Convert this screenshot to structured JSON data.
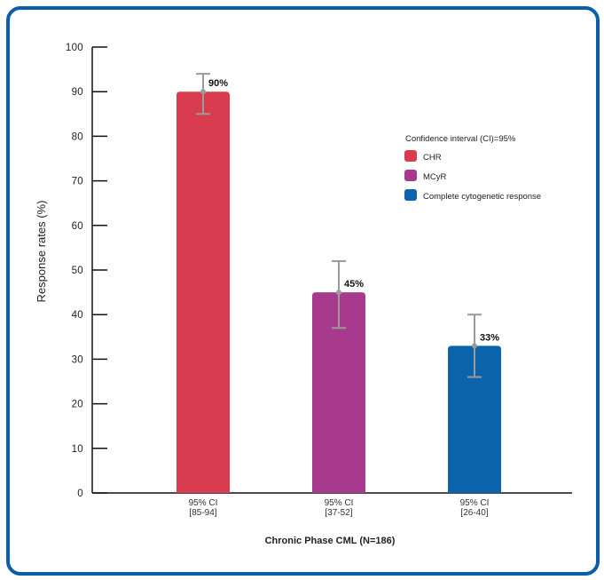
{
  "chart_data": {
    "type": "bar",
    "categories": [
      "95% CI\n[85-94]",
      "95% CI\n[37-52]",
      "95% CI\n[26-40]"
    ],
    "values": [
      90,
      45,
      33
    ],
    "data_labels": [
      "90%",
      "45%",
      "33%"
    ],
    "error_bars": [
      [
        85,
        94
      ],
      [
        37,
        52
      ],
      [
        26,
        40
      ]
    ],
    "colors": [
      "#d93c4e",
      "#a83a8e",
      "#0b63ac"
    ],
    "title": "",
    "xlabel": "Chronic Phase CML (N=186)",
    "ylabel": "Response rates (%)",
    "ylim": [
      0,
      100
    ],
    "yticks": [
      0,
      10,
      20,
      30,
      40,
      50,
      60,
      70,
      80,
      90,
      100
    ],
    "grid": false,
    "legend": {
      "title": "Confidence interval (CI)=95%",
      "placement": "right",
      "entries": [
        {
          "label": "CHR",
          "color": "#d93c4e"
        },
        {
          "label": "MCyR",
          "color": "#a83a8e"
        },
        {
          "label": "Complete cytogenetic response",
          "color": "#0b63ac"
        }
      ]
    }
  },
  "colors": {
    "frame": "#0b5ea8",
    "axis": "#111111",
    "error_bar": "#9a9a9a"
  }
}
